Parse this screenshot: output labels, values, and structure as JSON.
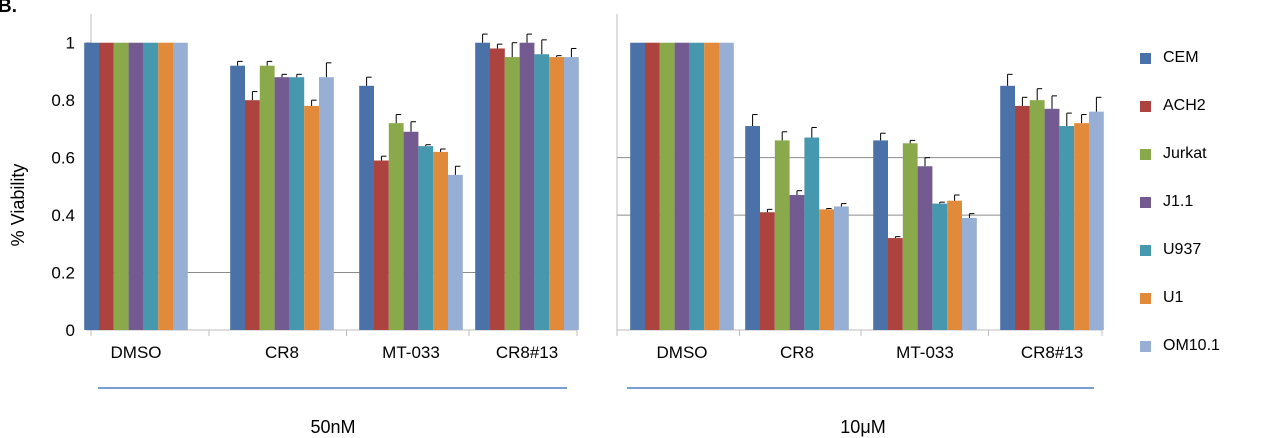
{
  "panel_letter": "B.",
  "chart_data": [
    {
      "type": "bar",
      "title": "",
      "group_label": "50nM",
      "ylabel": "% Viability",
      "ylim": [
        0,
        1.1
      ],
      "yticks": [
        "0",
        "0.2",
        "0.4",
        "0.6",
        "0.8",
        "1"
      ],
      "ytick_values": [
        0,
        0.2,
        0.4,
        0.6,
        0.8,
        1
      ],
      "gridlines_at": [
        0.2
      ],
      "categories": [
        "DMSO",
        "CR8",
        "MT-033",
        "CR8#13"
      ],
      "series": [
        {
          "name": "CEM",
          "values": [
            1.0,
            0.92,
            0.85,
            1.0
          ],
          "errors": [
            0,
            0.015,
            0.03,
            0.03
          ]
        },
        {
          "name": "ACH2",
          "values": [
            1.0,
            0.8,
            0.59,
            0.98
          ],
          "errors": [
            0,
            0.03,
            0.015,
            0.015
          ]
        },
        {
          "name": "Jurkat",
          "values": [
            1.0,
            0.92,
            0.72,
            0.95
          ],
          "errors": [
            0,
            0.015,
            0.03,
            0.05
          ]
        },
        {
          "name": "J1.1",
          "values": [
            1.0,
            0.88,
            0.69,
            1.0
          ],
          "errors": [
            0,
            0.01,
            0.035,
            0.03
          ]
        },
        {
          "name": "U937",
          "values": [
            1.0,
            0.88,
            0.64,
            0.96
          ],
          "errors": [
            0,
            0.01,
            0.005,
            0.05
          ]
        },
        {
          "name": "U1",
          "values": [
            1.0,
            0.78,
            0.62,
            0.95
          ],
          "errors": [
            0,
            0.02,
            0.01,
            0.005
          ]
        },
        {
          "name": "OM10.1",
          "values": [
            1.0,
            0.88,
            0.54,
            0.95
          ],
          "errors": [
            0,
            0.05,
            0.03,
            0.03
          ]
        }
      ]
    },
    {
      "type": "bar",
      "title": "",
      "group_label": "10μM",
      "ylabel": "",
      "ylim": [
        0,
        1.1
      ],
      "gridlines_at": [
        0.4,
        0.6
      ],
      "categories": [
        "DMSO",
        "CR8",
        "MT-033",
        "CR8#13"
      ],
      "series": [
        {
          "name": "CEM",
          "values": [
            1.0,
            0.71,
            0.66,
            0.85
          ],
          "errors": [
            0,
            0.04,
            0.025,
            0.04
          ]
        },
        {
          "name": "ACH2",
          "values": [
            1.0,
            0.41,
            0.32,
            0.78
          ],
          "errors": [
            0,
            0.01,
            0.005,
            0.03
          ]
        },
        {
          "name": "Jurkat",
          "values": [
            1.0,
            0.66,
            0.65,
            0.8
          ],
          "errors": [
            0,
            0.03,
            0.01,
            0.04
          ]
        },
        {
          "name": "J1.1",
          "values": [
            1.0,
            0.47,
            0.57,
            0.77
          ],
          "errors": [
            0,
            0.015,
            0.03,
            0.045
          ]
        },
        {
          "name": "U937",
          "values": [
            1.0,
            0.67,
            0.44,
            0.71
          ],
          "errors": [
            0,
            0.035,
            0.005,
            0.045
          ]
        },
        {
          "name": "U1",
          "values": [
            1.0,
            0.42,
            0.45,
            0.72
          ],
          "errors": [
            0,
            0.003,
            0.02,
            0.03
          ]
        },
        {
          "name": "OM10.1",
          "values": [
            1.0,
            0.43,
            0.39,
            0.76
          ],
          "errors": [
            0,
            0.01,
            0.015,
            0.05
          ]
        }
      ]
    }
  ],
  "legend": {
    "position": "right",
    "items": [
      {
        "name": "CEM",
        "color": "#4a72a8"
      },
      {
        "name": "ACH2",
        "color": "#ad433f"
      },
      {
        "name": "Jurkat",
        "color": "#8aa94a"
      },
      {
        "name": "J1.1",
        "color": "#735a91"
      },
      {
        "name": "U937",
        "color": "#4598ad"
      },
      {
        "name": "U1",
        "color": "#e08a3a"
      },
      {
        "name": "OM10.1",
        "color": "#97aed5"
      }
    ]
  }
}
